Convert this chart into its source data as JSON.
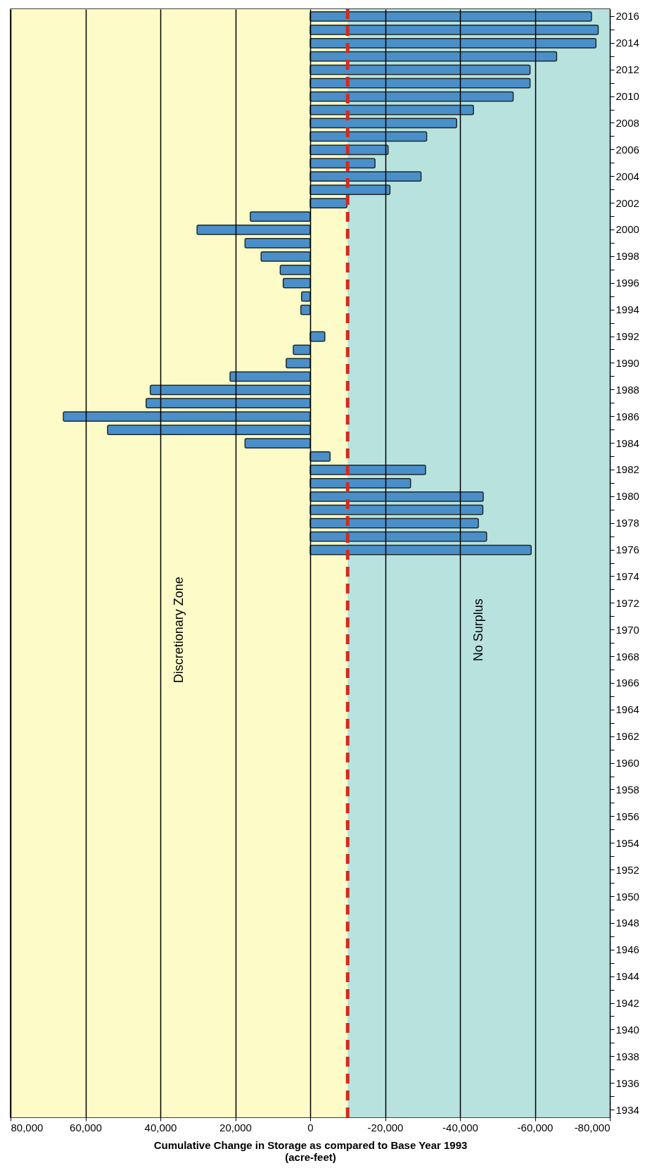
{
  "chart_data": {
    "type": "bar",
    "orientation": "horizontal",
    "xlabel": "Cumulative Change  in Storage as compared to Base Year 1993\n(acre-feet)",
    "categories": [
      "2016",
      null,
      "2014",
      null,
      "2012",
      null,
      "2010",
      null,
      "2008",
      null,
      "2006",
      null,
      "2004",
      null,
      "2002",
      null,
      "2000",
      null,
      "1998",
      null,
      "1996",
      null,
      "1994",
      null,
      "1992",
      null,
      "1990",
      null,
      "1988",
      null,
      "1986",
      null,
      "1984",
      null,
      "1982",
      null,
      "1980",
      null,
      "1978",
      null,
      "1976",
      null,
      "1974",
      null,
      "1972",
      null,
      "1970",
      null,
      "1968",
      null,
      "1966",
      null,
      "1964",
      null,
      "1962",
      null,
      "1960",
      null,
      "1958",
      null,
      "1956",
      null,
      "1954",
      null,
      "1952",
      null,
      "1950",
      null,
      "1948",
      null,
      "1946",
      null,
      "1944",
      null,
      "1942",
      null,
      "1940",
      null,
      "1938",
      null,
      "1936",
      null,
      "1934"
    ],
    "series": [
      {
        "color": "#4a8fc9",
        "values": [
          -75100,
          -76900,
          -76300,
          -65800,
          -58700,
          -58700,
          -54200,
          -43600,
          -39100,
          -31100,
          -20800,
          -17300,
          -29600,
          -21300,
          -9800,
          16000,
          30200,
          17400,
          13100,
          8000,
          7200,
          2300,
          2500,
          null,
          -3900,
          4500,
          6400,
          21400,
          42700,
          43800,
          65900,
          54100,
          17400,
          -5300,
          -30800,
          -26800,
          -46200,
          -46100,
          -44900,
          -47100,
          -59000,
          null,
          null,
          null,
          null,
          null,
          null,
          null,
          null,
          null,
          null,
          null,
          null,
          null,
          null,
          null,
          null,
          null,
          null,
          null,
          null,
          null,
          null,
          null,
          null,
          null,
          null,
          null,
          null,
          null,
          null,
          null,
          null,
          null,
          null,
          null,
          null,
          null,
          null,
          null,
          null,
          null,
          null
        ]
      }
    ],
    "xlim": [
      80000,
      -80000
    ],
    "xticks": [
      {
        "value": 80000,
        "label": "80,000"
      },
      {
        "value": 60000,
        "label": "60,000"
      },
      {
        "value": 40000,
        "label": "40,000"
      },
      {
        "value": 20000,
        "label": "20,000"
      },
      0,
      {
        "value": -20000,
        "label": "-20,000"
      },
      {
        "value": -40000,
        "label": "-40,000"
      },
      {
        "value": -60000,
        "label": "-60,000"
      },
      {
        "value": -80000,
        "label": "-80,000"
      }
    ],
    "grid": "x",
    "ref_lines": [
      {
        "axis": "x",
        "value": -10000,
        "color": "#d42a1f",
        "line_style": "dashed"
      }
    ],
    "bands": [
      {
        "axis": "x",
        "from": 80000,
        "to": -10000,
        "label": "Discretionary Zone",
        "color": "#fdfbc8"
      },
      {
        "axis": "x",
        "from": -10000,
        "to": -80000,
        "label": "No Surplus",
        "color": "#b8e2de"
      }
    ]
  }
}
